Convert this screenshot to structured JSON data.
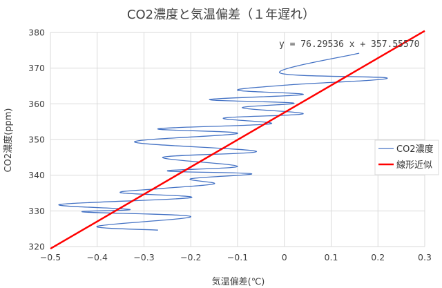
{
  "chart_data": {
    "type": "line",
    "title": "CO2濃度と気温偏差（１年遅れ）",
    "xlabel": "気温偏差(℃)",
    "ylabel": "CO2濃度(ppm)",
    "xlim": [
      -0.5,
      0.3
    ],
    "ylim": [
      320,
      380
    ],
    "xticks": [
      -0.5,
      -0.4,
      -0.3,
      -0.2,
      -0.1,
      0,
      0.1,
      0.2,
      0.3
    ],
    "xtick_labels": [
      "−0.5",
      "−0.4",
      "−0.3",
      "−0.2",
      "−0.1",
      "0",
      "0.1",
      "0.2",
      "0.3"
    ],
    "yticks": [
      320,
      330,
      340,
      350,
      360,
      370,
      380
    ],
    "ytick_labels": [
      "320",
      "330",
      "340",
      "350",
      "360",
      "370",
      "380"
    ],
    "grid": true,
    "equation_text": "y = 76.29536 x + 357.55570",
    "legend_position": "right",
    "series": [
      {
        "name": "CO2濃度",
        "style": "smooth",
        "color": "#4472c4",
        "x": [
          -0.27,
          -0.4,
          -0.2,
          -0.43,
          -0.33,
          -0.48,
          -0.2,
          -0.35,
          -0.26,
          -0.15,
          -0.2,
          -0.07,
          -0.25,
          -0.1,
          -0.26,
          -0.06,
          -0.32,
          -0.1,
          -0.27,
          -0.03,
          -0.13,
          0.04,
          -0.09,
          0.02,
          -0.16,
          0.04,
          -0.1,
          0.01,
          0.22,
          -0.01,
          0.16
        ],
        "y": [
          324.6,
          325.7,
          328.4,
          329.7,
          330.4,
          331.8,
          333.7,
          335.1,
          336.3,
          337.6,
          339.0,
          340.4,
          341.2,
          342.5,
          345.0,
          346.7,
          349.3,
          351.7,
          353.0,
          354.4,
          356.0,
          357.2,
          358.9,
          360.2,
          361.2,
          362.6,
          363.8,
          365.3,
          367.2,
          368.7,
          374.2
        ]
      },
      {
        "name": "線形近似",
        "style": "line",
        "color": "#ff0000",
        "slope": 76.29536,
        "intercept": 357.5557,
        "x_range": [
          -0.5,
          0.3
        ]
      }
    ]
  },
  "legend": {
    "co2": "CO2濃度",
    "fit": "線形近似"
  }
}
